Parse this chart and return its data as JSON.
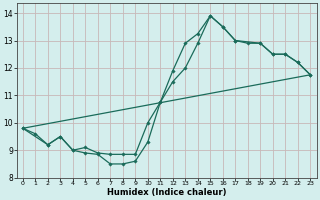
{
  "xlabel": "Humidex (Indice chaleur)",
  "background_color": "#d4eeed",
  "grid_color": "#c8b8b8",
  "line_color": "#1a6b5a",
  "xlim": [
    -0.5,
    23.5
  ],
  "ylim": [
    8.0,
    14.35
  ],
  "yticks": [
    8,
    9,
    10,
    11,
    12,
    13,
    14
  ],
  "xticks": [
    0,
    1,
    2,
    3,
    4,
    5,
    6,
    7,
    8,
    9,
    10,
    11,
    12,
    13,
    14,
    15,
    16,
    17,
    18,
    19,
    20,
    21,
    22,
    23
  ],
  "series1_x": [
    0,
    1,
    2,
    3,
    4,
    5,
    6,
    7,
    8,
    9,
    10,
    11,
    12,
    13,
    14,
    15,
    16,
    17,
    18,
    19,
    20,
    21,
    22,
    23
  ],
  "series1_y": [
    9.8,
    9.6,
    9.2,
    9.5,
    9.0,
    8.9,
    8.85,
    8.5,
    8.5,
    8.6,
    9.3,
    10.75,
    11.9,
    12.9,
    13.25,
    13.9,
    13.5,
    13.0,
    12.9,
    12.9,
    12.5,
    12.5,
    12.2,
    11.75
  ],
  "series2_x": [
    0,
    2,
    3,
    4,
    5,
    6,
    7,
    8,
    9,
    10,
    11,
    12,
    13,
    14,
    15,
    16,
    17,
    19,
    20,
    21,
    22,
    23
  ],
  "series2_y": [
    9.8,
    9.2,
    9.5,
    9.0,
    9.1,
    8.9,
    8.85,
    8.85,
    8.85,
    10.0,
    10.75,
    11.5,
    12.0,
    12.9,
    13.9,
    13.5,
    13.0,
    12.9,
    12.5,
    12.5,
    12.2,
    11.75
  ],
  "series3_x": [
    0,
    23
  ],
  "series3_y": [
    9.8,
    11.75
  ]
}
